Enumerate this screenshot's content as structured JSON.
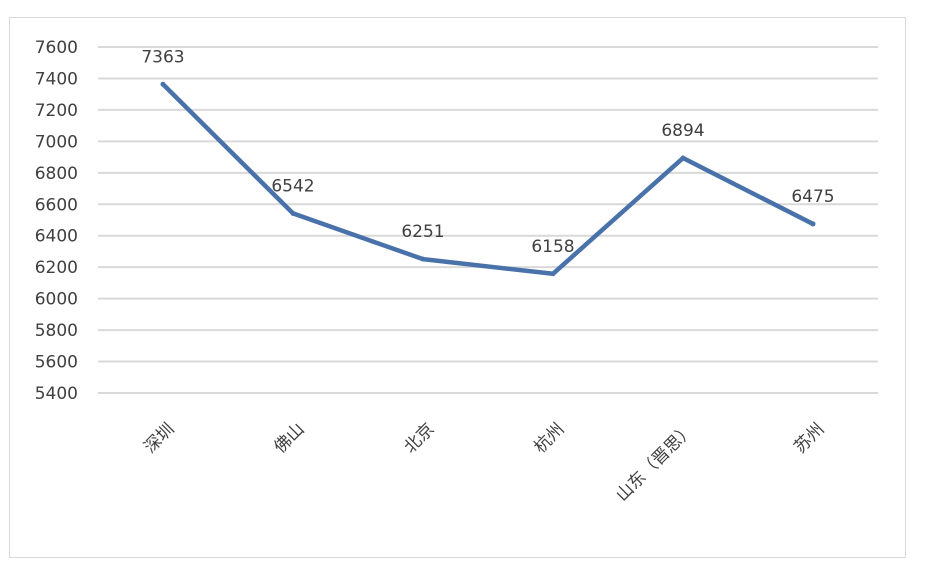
{
  "chart_data": {
    "type": "line",
    "categories": [
      "深圳",
      "佛山",
      "北京",
      "杭州",
      "山东（晋思）",
      "苏州"
    ],
    "values": [
      7363,
      6542,
      6251,
      6158,
      6894,
      6475
    ],
    "data_labels": [
      "7363",
      "6542",
      "6251",
      "6158",
      "6894",
      "6475"
    ],
    "ylim": [
      5400,
      7600
    ],
    "yticks": [
      5400,
      5600,
      5800,
      6000,
      6200,
      6400,
      6600,
      6800,
      7000,
      7200,
      7400,
      7600
    ],
    "grid": true,
    "legend": "none",
    "line_color": "#4a72aa",
    "grid_color": "#d9d9d9"
  }
}
